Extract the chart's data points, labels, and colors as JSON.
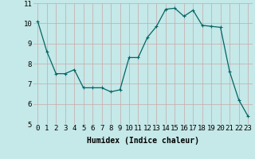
{
  "x": [
    0,
    1,
    2,
    3,
    4,
    5,
    6,
    7,
    8,
    9,
    10,
    11,
    12,
    13,
    14,
    15,
    16,
    17,
    18,
    19,
    20,
    21,
    22,
    23
  ],
  "y": [
    10.1,
    8.6,
    7.5,
    7.5,
    7.7,
    6.8,
    6.8,
    6.8,
    6.6,
    6.7,
    8.3,
    8.3,
    9.3,
    9.85,
    10.7,
    10.75,
    10.35,
    10.65,
    9.9,
    9.85,
    9.8,
    7.6,
    6.2,
    5.4
  ],
  "line_color": "#006666",
  "marker": "+",
  "marker_size": 3,
  "marker_linewidth": 0.8,
  "bg_color": "#c5e8e8",
  "grid_color": "#c8a8a8",
  "xlabel": "Humidex (Indice chaleur)",
  "xlim": [
    -0.5,
    23.5
  ],
  "ylim": [
    5,
    11
  ],
  "yticks": [
    5,
    6,
    7,
    8,
    9,
    10,
    11
  ],
  "xticks": [
    0,
    1,
    2,
    3,
    4,
    5,
    6,
    7,
    8,
    9,
    10,
    11,
    12,
    13,
    14,
    15,
    16,
    17,
    18,
    19,
    20,
    21,
    22,
    23
  ],
  "xlabel_fontsize": 7,
  "tick_fontsize": 6.5,
  "linewidth": 0.9
}
